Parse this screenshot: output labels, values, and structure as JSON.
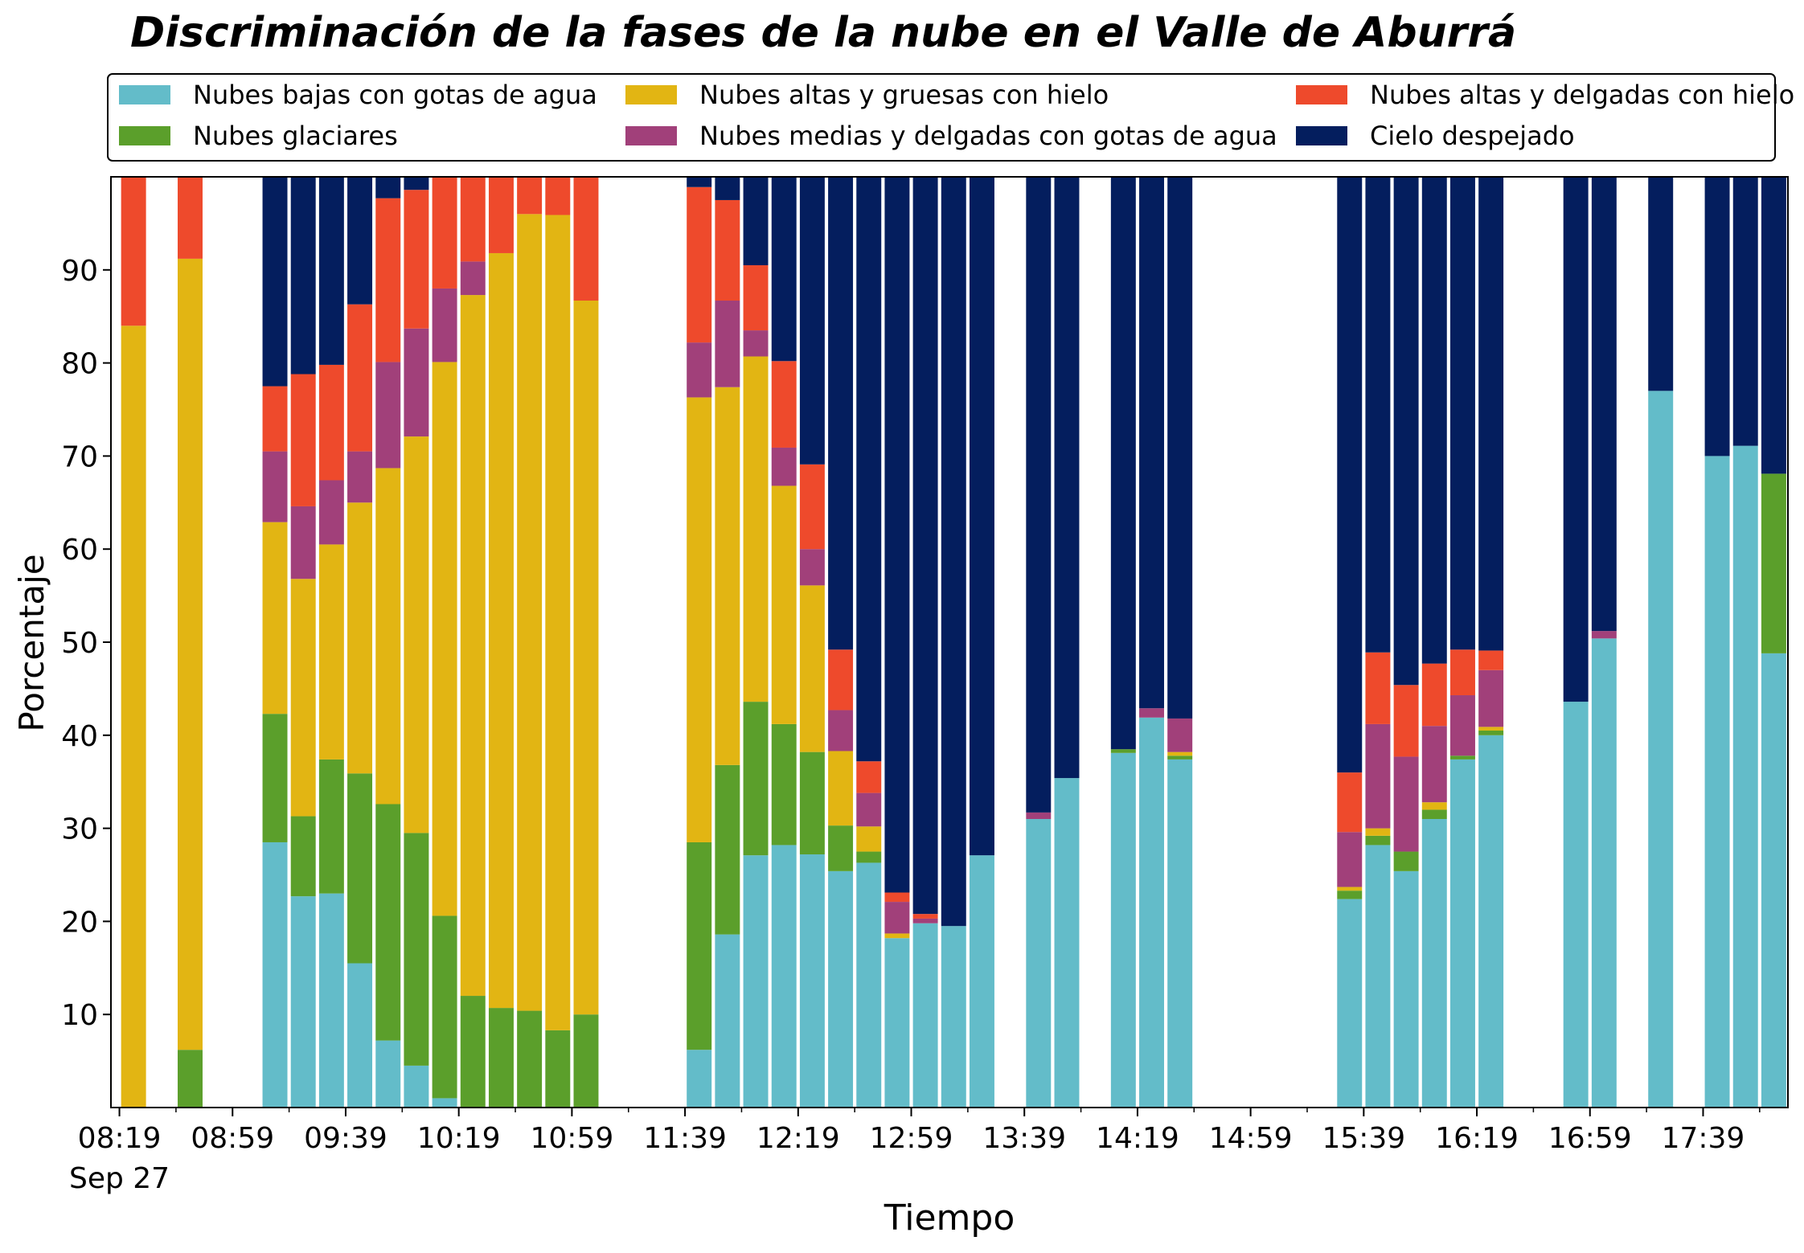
{
  "chart_data": {
    "type": "bar",
    "stacked": true,
    "title": "Discriminación de la fases de la nube en el Valle de Aburrá",
    "xlabel": "Tiempo",
    "ylabel": "Porcentaje",
    "ylim": [
      0,
      100
    ],
    "y_ticks": [
      10,
      20,
      30,
      40,
      50,
      60,
      70,
      80,
      90
    ],
    "x_start": "08:19",
    "x_end": "18:00",
    "x_ticks": [
      "08:19",
      "08:59",
      "09:39",
      "10:19",
      "10:59",
      "11:39",
      "12:19",
      "12:59",
      "13:39",
      "14:19",
      "14:59",
      "15:39",
      "16:19",
      "16:59",
      "17:39"
    ],
    "x_date_label": "Sep 27",
    "legend_position": "top",
    "grid": false,
    "series": [
      {
        "name": "Nubes bajas con gotas de agua",
        "color": "#63BCC9"
      },
      {
        "name": "Nubes glaciares",
        "color": "#5B9F2B"
      },
      {
        "name": "Nubes altas y gruesas con hielo",
        "color": "#E2B513"
      },
      {
        "name": "Nubes medias y delgadas con gotas de agua",
        "color": "#A1407A"
      },
      {
        "name": "Nubes altas y delgadas con hielo",
        "color": "#EE4A2C"
      },
      {
        "name": "Cielo despejado",
        "color": "#041E5E"
      }
    ],
    "bars": [
      {
        "time": "08:24",
        "values": [
          0,
          0,
          84,
          0,
          16,
          0
        ]
      },
      {
        "time": "08:44",
        "values": [
          0,
          6.2,
          85,
          0,
          8.8,
          0
        ]
      },
      {
        "time": "09:14",
        "values": [
          28.5,
          13.8,
          20.6,
          7.6,
          7,
          22.5
        ]
      },
      {
        "time": "09:24",
        "values": [
          22.7,
          8.6,
          25.5,
          7.8,
          14.2,
          21.2
        ]
      },
      {
        "time": "09:34",
        "values": [
          23,
          14.4,
          23.1,
          6.9,
          12.4,
          20.2
        ]
      },
      {
        "time": "09:44",
        "values": [
          15.5,
          20.4,
          29.1,
          5.5,
          15.8,
          13.7
        ]
      },
      {
        "time": "09:54",
        "values": [
          7.2,
          25.4,
          36.1,
          11.4,
          17.6,
          2.3
        ]
      },
      {
        "time": "10:04",
        "values": [
          4.5,
          25,
          42.6,
          11.6,
          14.9,
          1.4
        ]
      },
      {
        "time": "10:14",
        "values": [
          1,
          19.6,
          59.5,
          7.9,
          12,
          0
        ]
      },
      {
        "time": "10:24",
        "values": [
          0,
          12,
          75.3,
          3.6,
          9.1,
          0
        ]
      },
      {
        "time": "10:34",
        "values": [
          0,
          10.7,
          81.1,
          0,
          8.2,
          0
        ]
      },
      {
        "time": "10:44",
        "values": [
          0,
          10.4,
          85.6,
          0,
          4,
          0
        ]
      },
      {
        "time": "10:54",
        "values": [
          0,
          8.3,
          87.6,
          0,
          4.1,
          0
        ]
      },
      {
        "time": "11:04",
        "values": [
          0,
          10,
          76.7,
          0,
          13.3,
          0
        ]
      },
      {
        "time": "11:44",
        "values": [
          6.2,
          22.3,
          47.8,
          5.9,
          16.7,
          1.1
        ]
      },
      {
        "time": "11:54",
        "values": [
          18.6,
          18.2,
          40.6,
          9.3,
          10.8,
          2.5
        ]
      },
      {
        "time": "12:04",
        "values": [
          27.1,
          16.5,
          37.1,
          2.8,
          7,
          9.5
        ]
      },
      {
        "time": "12:14",
        "values": [
          28.2,
          13,
          25.6,
          4.1,
          9.3,
          19.8
        ]
      },
      {
        "time": "12:24",
        "values": [
          27.2,
          11,
          17.9,
          3.9,
          9.1,
          30.9
        ]
      },
      {
        "time": "12:34",
        "values": [
          25.4,
          4.9,
          8,
          4.4,
          6.5,
          50.8
        ]
      },
      {
        "time": "12:44",
        "values": [
          26.3,
          1.2,
          2.7,
          3.6,
          3.4,
          62.8
        ]
      },
      {
        "time": "12:54",
        "values": [
          18.2,
          0,
          0.5,
          3.4,
          1,
          76.9
        ]
      },
      {
        "time": "13:04",
        "values": [
          19.8,
          0,
          0,
          0.5,
          0.5,
          79.2
        ]
      },
      {
        "time": "13:14",
        "values": [
          19.5,
          0,
          0,
          0,
          0,
          80.5
        ]
      },
      {
        "time": "13:24",
        "values": [
          27.1,
          0,
          0,
          0,
          0,
          72.9
        ]
      },
      {
        "time": "13:44",
        "values": [
          31,
          0,
          0,
          0.7,
          0,
          68.3
        ]
      },
      {
        "time": "13:54",
        "values": [
          35.4,
          0,
          0,
          0,
          0,
          64.6
        ]
      },
      {
        "time": "14:14",
        "values": [
          38.1,
          0.4,
          0,
          0,
          0,
          61.5
        ]
      },
      {
        "time": "14:24",
        "values": [
          41.9,
          0,
          0,
          1,
          0,
          57.1
        ]
      },
      {
        "time": "14:34",
        "values": [
          37.4,
          0.4,
          0.4,
          3.6,
          0,
          58.2
        ]
      },
      {
        "time": "15:34",
        "values": [
          22.4,
          0.9,
          0.4,
          5.9,
          6.4,
          64
        ]
      },
      {
        "time": "15:44",
        "values": [
          28.2,
          1,
          0.8,
          11.2,
          7.7,
          51.1
        ]
      },
      {
        "time": "15:54",
        "values": [
          25.4,
          2.1,
          0,
          10.2,
          7.7,
          54.6
        ]
      },
      {
        "time": "16:04",
        "values": [
          31,
          1,
          0.8,
          8.2,
          6.7,
          52.3
        ]
      },
      {
        "time": "16:14",
        "values": [
          37.4,
          0.4,
          0,
          6.5,
          4.9,
          50.8
        ]
      },
      {
        "time": "16:24",
        "values": [
          40,
          0.5,
          0.4,
          6.1,
          2.1,
          50.9
        ]
      },
      {
        "time": "16:54",
        "values": [
          43.6,
          0,
          0,
          0,
          0,
          56.4
        ]
      },
      {
        "time": "17:04",
        "values": [
          50.4,
          0,
          0,
          0.8,
          0,
          48.8
        ]
      },
      {
        "time": "17:24",
        "values": [
          77,
          0,
          0,
          0,
          0,
          23
        ]
      },
      {
        "time": "17:44",
        "values": [
          70,
          0,
          0,
          0,
          0,
          30
        ]
      },
      {
        "time": "17:54",
        "values": [
          71.1,
          0,
          0,
          0,
          0,
          28.9
        ]
      },
      {
        "time": "18:04",
        "values": [
          48.8,
          19.3,
          0,
          0,
          0,
          31.9
        ]
      }
    ]
  }
}
